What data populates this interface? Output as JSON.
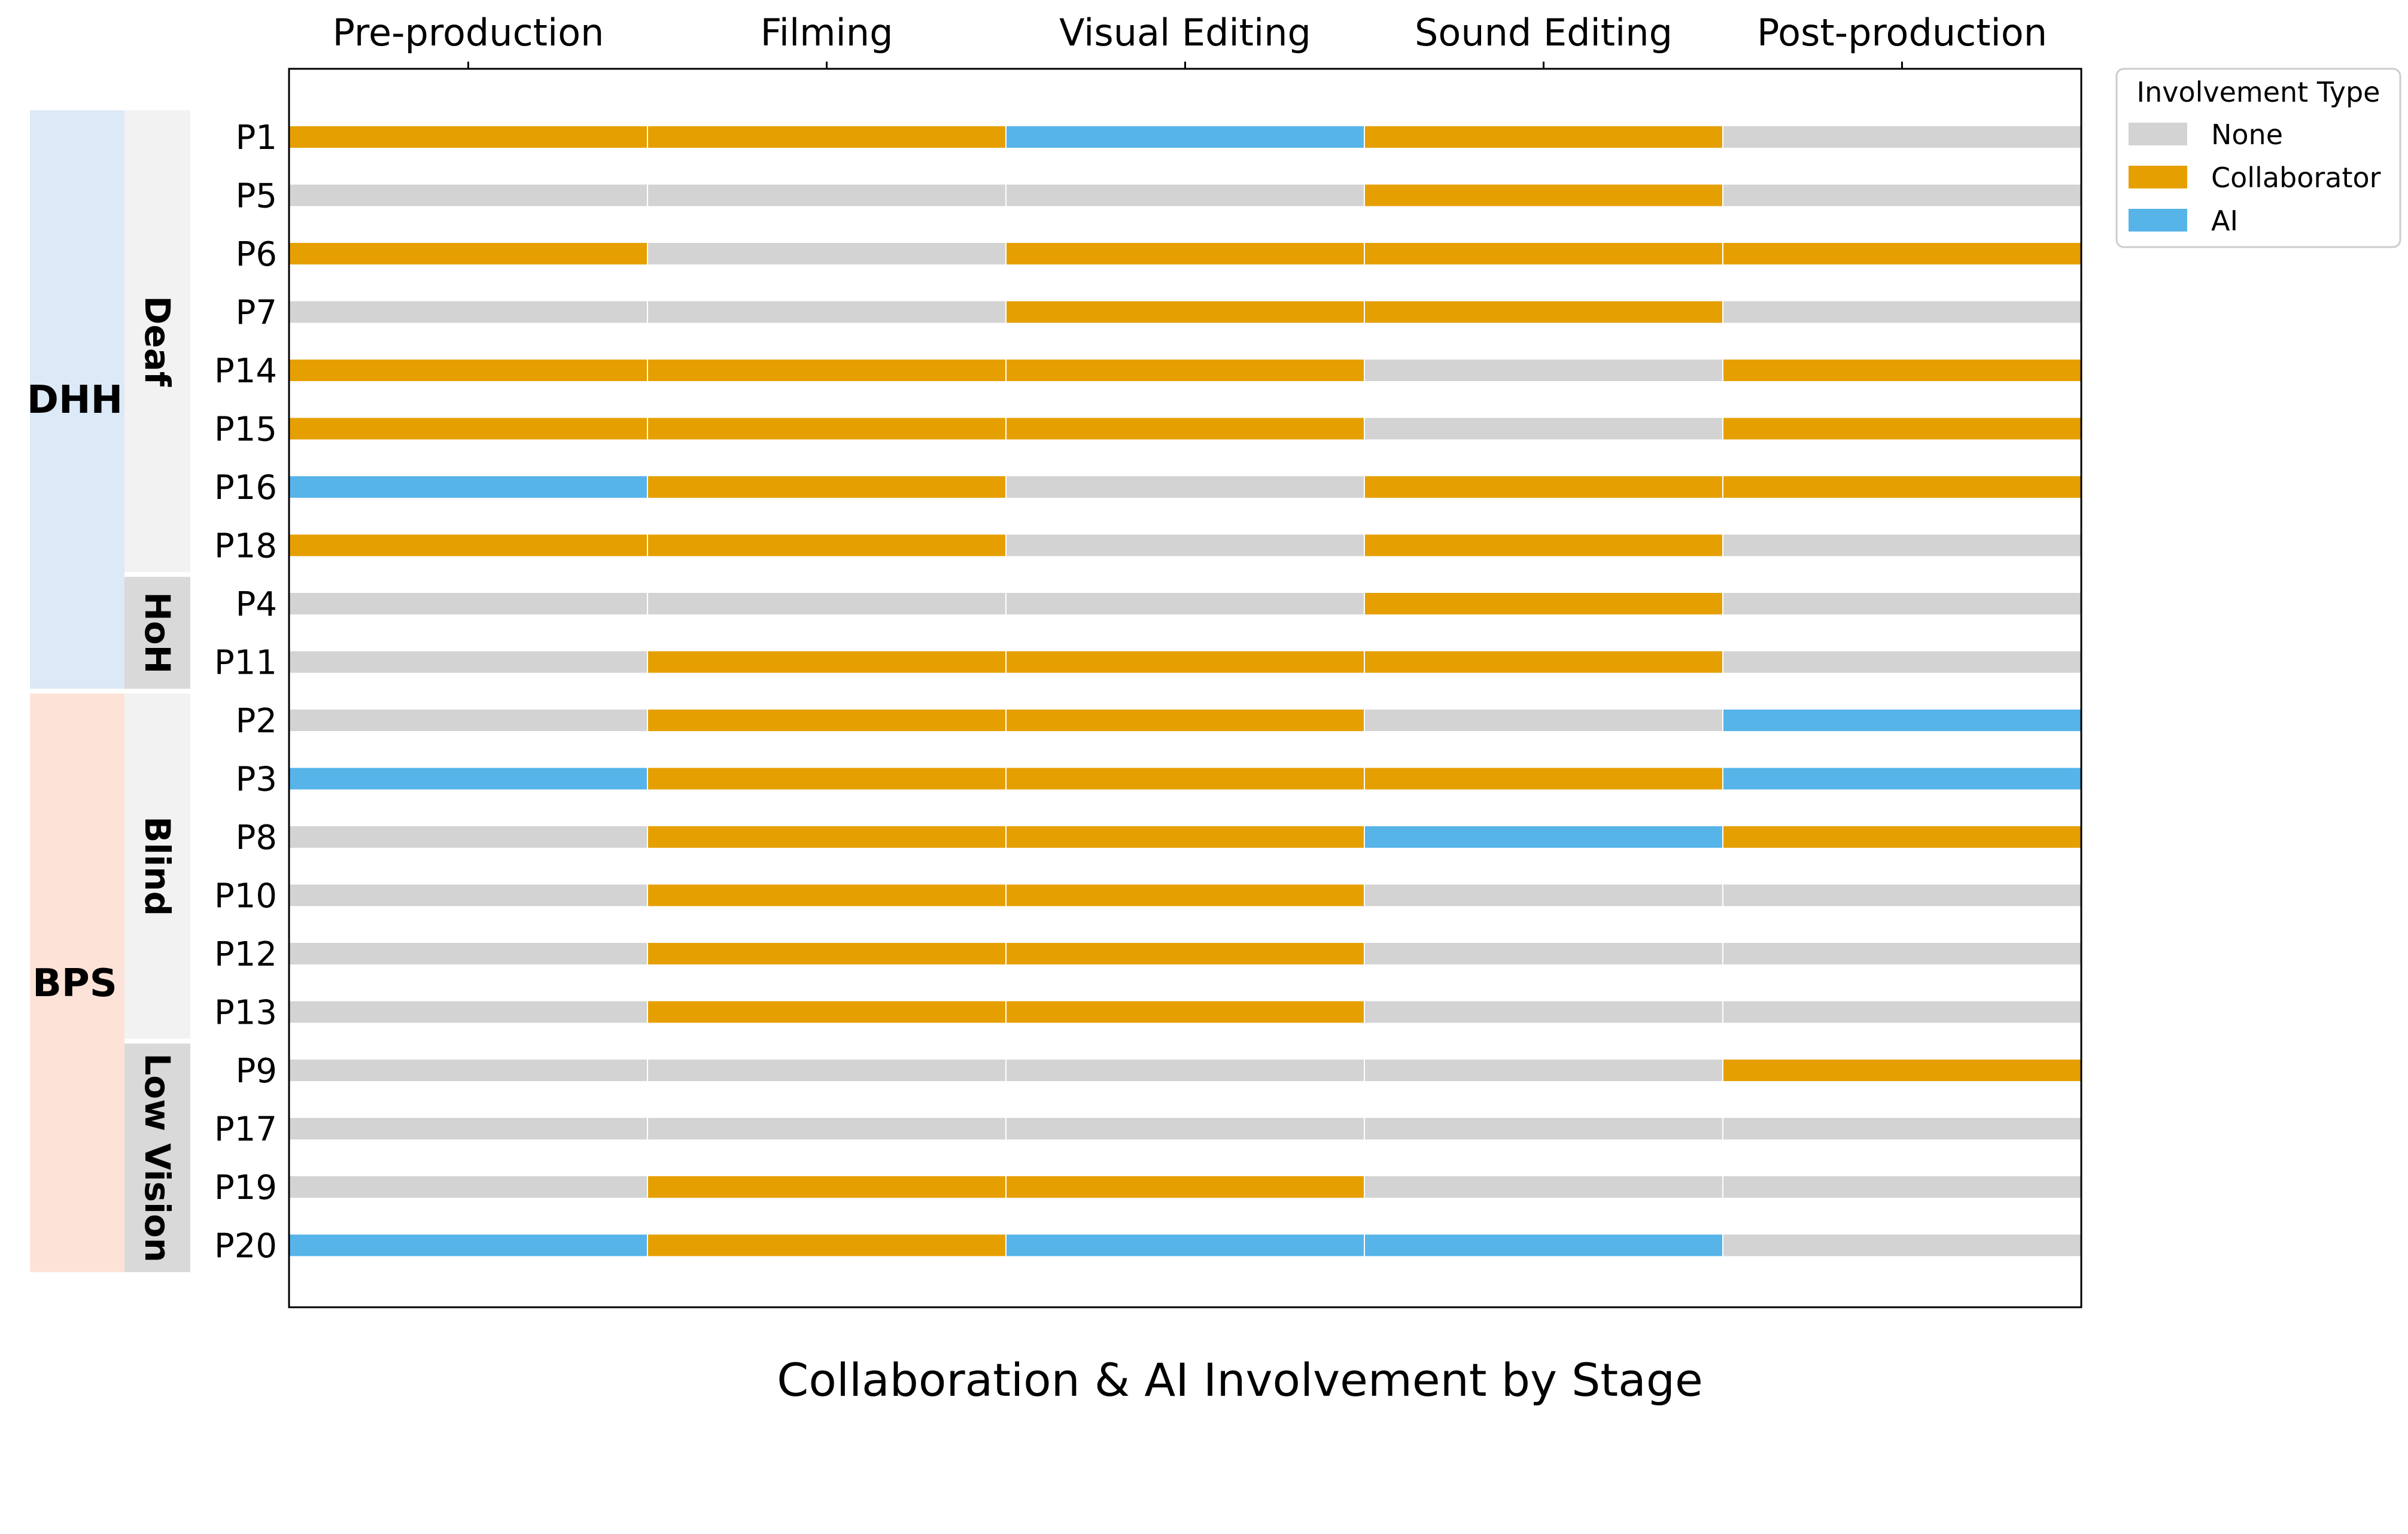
{
  "chart_data": {
    "type": "bar",
    "subtype": "stacked-horizontal-stage-bars",
    "title": "",
    "xlabel": "Collaboration & AI Involvement by Stage",
    "ylabel": "",
    "stages": [
      "Pre-production",
      "Filming",
      "Visual Editing",
      "Sound Editing",
      "Post-production"
    ],
    "stage_axis_position": "top",
    "grid": false,
    "legend": {
      "title": "Involvement Type",
      "placement": "outside-top-right",
      "entries": [
        {
          "name": "None",
          "color": "#d3d3d3"
        },
        {
          "name": "Collaborator",
          "color": "#e69f00"
        },
        {
          "name": "AI",
          "color": "#56b4e9"
        }
      ]
    },
    "groups": [
      {
        "label": "DHH",
        "color": "#dce9f7",
        "subgroups": [
          {
            "label": "Deaf",
            "color": "#f2f2f2",
            "participants": [
              "P1",
              "P5",
              "P6",
              "P7",
              "P14",
              "P15",
              "P16",
              "P18"
            ]
          },
          {
            "label": "HoH",
            "color": "#d9d9d9",
            "participants": [
              "P4",
              "P11"
            ]
          }
        ]
      },
      {
        "label": "BPS",
        "color": "#fde3d7",
        "subgroups": [
          {
            "label": "Blind",
            "color": "#f2f2f2",
            "participants": [
              "P2",
              "P3",
              "P8",
              "P10",
              "P12",
              "P13"
            ]
          },
          {
            "label": "Low Vision",
            "color": "#d9d9d9",
            "participants": [
              "P9",
              "P17",
              "P19",
              "P20"
            ]
          }
        ]
      }
    ],
    "rows": [
      {
        "participant": "P1",
        "stages": [
          "Collaborator",
          "Collaborator",
          "AI",
          "Collaborator",
          "None"
        ]
      },
      {
        "participant": "P5",
        "stages": [
          "None",
          "None",
          "None",
          "Collaborator",
          "None"
        ]
      },
      {
        "participant": "P6",
        "stages": [
          "Collaborator",
          "None",
          "Collaborator",
          "Collaborator",
          "Collaborator"
        ]
      },
      {
        "participant": "P7",
        "stages": [
          "None",
          "None",
          "Collaborator",
          "Collaborator",
          "None"
        ]
      },
      {
        "participant": "P14",
        "stages": [
          "Collaborator",
          "Collaborator",
          "Collaborator",
          "None",
          "Collaborator"
        ]
      },
      {
        "participant": "P15",
        "stages": [
          "Collaborator",
          "Collaborator",
          "Collaborator",
          "None",
          "Collaborator"
        ]
      },
      {
        "participant": "P16",
        "stages": [
          "AI",
          "Collaborator",
          "None",
          "Collaborator",
          "Collaborator"
        ]
      },
      {
        "participant": "P18",
        "stages": [
          "Collaborator",
          "Collaborator",
          "None",
          "Collaborator",
          "None"
        ]
      },
      {
        "participant": "P4",
        "stages": [
          "None",
          "None",
          "None",
          "Collaborator",
          "None"
        ]
      },
      {
        "participant": "P11",
        "stages": [
          "None",
          "Collaborator",
          "Collaborator",
          "Collaborator",
          "None"
        ]
      },
      {
        "participant": "P2",
        "stages": [
          "None",
          "Collaborator",
          "Collaborator",
          "None",
          "AI"
        ]
      },
      {
        "participant": "P3",
        "stages": [
          "AI",
          "Collaborator",
          "Collaborator",
          "Collaborator",
          "AI"
        ]
      },
      {
        "participant": "P8",
        "stages": [
          "None",
          "Collaborator",
          "Collaborator",
          "AI",
          "Collaborator"
        ]
      },
      {
        "participant": "P10",
        "stages": [
          "None",
          "Collaborator",
          "Collaborator",
          "None",
          "None"
        ]
      },
      {
        "participant": "P12",
        "stages": [
          "None",
          "Collaborator",
          "Collaborator",
          "None",
          "None"
        ]
      },
      {
        "participant": "P13",
        "stages": [
          "None",
          "Collaborator",
          "Collaborator",
          "None",
          "None"
        ]
      },
      {
        "participant": "P9",
        "stages": [
          "None",
          "None",
          "None",
          "None",
          "Collaborator"
        ]
      },
      {
        "participant": "P17",
        "stages": [
          "None",
          "None",
          "None",
          "None",
          "None"
        ]
      },
      {
        "participant": "P19",
        "stages": [
          "None",
          "Collaborator",
          "Collaborator",
          "None",
          "None"
        ]
      },
      {
        "participant": "P20",
        "stages": [
          "AI",
          "Collaborator",
          "AI",
          "AI",
          "None"
        ]
      }
    ]
  }
}
